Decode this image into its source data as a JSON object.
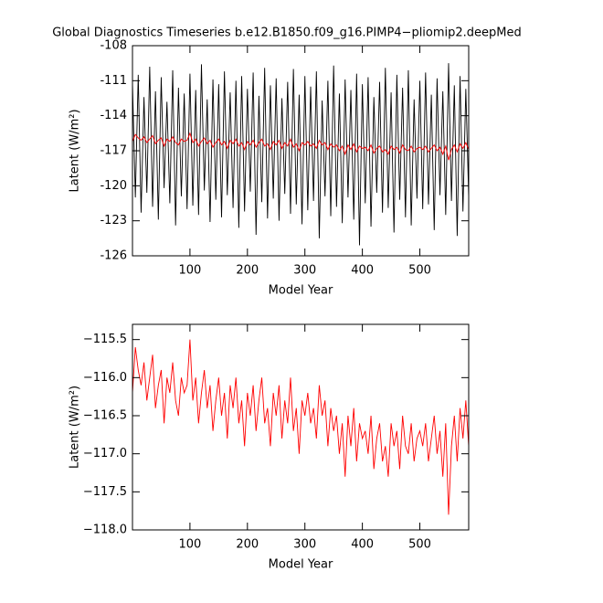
{
  "chart_data": [
    {
      "type": "line",
      "title": "Global Diagnostics Timeseries b.e12.B1850.f09_g16.PIMP4−pliomip2.deepMed",
      "xlabel": "Model Year",
      "ylabel": "Latent (W/m²)",
      "xlim": [
        0,
        585
      ],
      "xticks": [
        100,
        200,
        300,
        400,
        500
      ],
      "ylim": [
        -126,
        -108
      ],
      "yticks": [
        -126,
        -123,
        -120,
        -117,
        -114,
        -111,
        -108
      ],
      "x": [
        0,
        5,
        10,
        15,
        20,
        25,
        30,
        35,
        40,
        45,
        50,
        55,
        60,
        65,
        70,
        75,
        80,
        85,
        90,
        95,
        100,
        105,
        110,
        115,
        120,
        125,
        130,
        135,
        140,
        145,
        150,
        155,
        160,
        165,
        170,
        175,
        180,
        185,
        190,
        195,
        200,
        205,
        210,
        215,
        220,
        225,
        230,
        235,
        240,
        245,
        250,
        255,
        260,
        265,
        270,
        275,
        280,
        285,
        290,
        295,
        300,
        305,
        310,
        315,
        320,
        325,
        330,
        335,
        340,
        345,
        350,
        355,
        360,
        365,
        370,
        375,
        380,
        385,
        390,
        395,
        400,
        405,
        410,
        415,
        420,
        425,
        430,
        435,
        440,
        445,
        450,
        455,
        460,
        465,
        470,
        475,
        480,
        485,
        490,
        495,
        500,
        505,
        510,
        515,
        520,
        525,
        530,
        535,
        540,
        545,
        550,
        555,
        560,
        565,
        570,
        575,
        580,
        585
      ],
      "series": [
        {
          "color": "#000000",
          "values": [
            -111.2,
            -121.0,
            -110.5,
            -122.3,
            -112.4,
            -120.6,
            -109.8,
            -121.8,
            -111.9,
            -122.9,
            -110.7,
            -120.2,
            -112.8,
            -121.5,
            -110.1,
            -123.4,
            -111.6,
            -120.9,
            -112.1,
            -122.0,
            -110.4,
            -121.7,
            -111.8,
            -122.5,
            -109.6,
            -120.4,
            -112.6,
            -123.1,
            -110.9,
            -121.2,
            -111.3,
            -122.7,
            -110.2,
            -120.8,
            -112.0,
            -121.9,
            -111.0,
            -123.6,
            -110.6,
            -122.2,
            -111.7,
            -120.5,
            -110.3,
            -124.2,
            -112.3,
            -121.4,
            -109.9,
            -122.8,
            -111.4,
            -121.1,
            -110.8,
            -123.0,
            -112.5,
            -120.7,
            -111.1,
            -122.4,
            -110.0,
            -121.6,
            -112.2,
            -123.3,
            -110.6,
            -122.1,
            -111.5,
            -121.3,
            -110.2,
            -124.5,
            -112.7,
            -120.9,
            -111.0,
            -122.6,
            -109.7,
            -121.8,
            -112.1,
            -123.2,
            -110.9,
            -121.0,
            -111.8,
            -122.9,
            -110.4,
            -125.1,
            -111.3,
            -121.5,
            -110.7,
            -123.5,
            -112.4,
            -120.6,
            -111.1,
            -122.3,
            -109.9,
            -121.9,
            -112.0,
            -124.0,
            -110.5,
            -121.2,
            -111.6,
            -122.7,
            -110.1,
            -123.4,
            -112.6,
            -121.1,
            -111.0,
            -122.0,
            -110.3,
            -121.6,
            -112.2,
            -123.8,
            -110.8,
            -120.8,
            -111.9,
            -122.5,
            -109.5,
            -121.3,
            -111.4,
            -124.3,
            -110.6,
            -122.2,
            -111.7,
            -121.0
          ]
        },
        {
          "color": "#ff0000",
          "values": [
            -116.2,
            -115.6,
            -115.9,
            -116.1,
            -115.8,
            -116.3,
            -116.0,
            -115.7,
            -116.4,
            -116.1,
            -115.9,
            -116.6,
            -116.0,
            -116.2,
            -115.8,
            -116.3,
            -116.5,
            -116.0,
            -116.2,
            -116.1,
            -115.5,
            -116.3,
            -116.0,
            -116.6,
            -116.2,
            -115.9,
            -116.4,
            -116.1,
            -116.7,
            -116.3,
            -116.0,
            -116.5,
            -116.2,
            -116.8,
            -116.1,
            -116.4,
            -116.0,
            -116.6,
            -116.3,
            -116.9,
            -116.2,
            -116.5,
            -116.1,
            -116.7,
            -116.3,
            -116.0,
            -116.6,
            -116.4,
            -116.9,
            -116.2,
            -116.5,
            -116.1,
            -116.8,
            -116.3,
            -116.6,
            -116.0,
            -116.7,
            -116.4,
            -117.0,
            -116.3,
            -116.5,
            -116.2,
            -116.6,
            -116.4,
            -116.8,
            -116.1,
            -116.5,
            -116.3,
            -116.9,
            -116.4,
            -116.7,
            -116.5,
            -117.0,
            -116.6,
            -117.3,
            -116.5,
            -116.9,
            -116.4,
            -117.1,
            -116.6,
            -116.8,
            -116.7,
            -117.0,
            -116.5,
            -117.2,
            -116.8,
            -116.6,
            -117.1,
            -116.9,
            -117.3,
            -116.6,
            -116.9,
            -116.7,
            -117.2,
            -116.5,
            -116.9,
            -117.0,
            -116.6,
            -117.1,
            -116.8,
            -116.7,
            -116.9,
            -116.6,
            -117.1,
            -116.8,
            -116.5,
            -117.0,
            -116.7,
            -117.3,
            -116.6,
            -117.8,
            -116.9,
            -116.5,
            -117.1,
            -116.4,
            -116.8,
            -116.3,
            -116.9
          ]
        }
      ]
    },
    {
      "type": "line",
      "xlabel": "Model Year",
      "ylabel": "Latent (W/m²)",
      "xlim": [
        0,
        585
      ],
      "xticks": [
        100,
        200,
        300,
        400,
        500
      ],
      "ylim": [
        -118,
        -115.3
      ],
      "yticks": [
        {
          "value": -118,
          "label": "−118.0"
        },
        {
          "value": -117.5,
          "label": "−117.5"
        },
        {
          "value": -117,
          "label": "−117.0"
        },
        {
          "value": -116.5,
          "label": "−116.5"
        },
        {
          "value": -116,
          "label": "−116.0"
        },
        {
          "value": -115.5,
          "label": "−115.5"
        }
      ],
      "x": [
        0,
        5,
        10,
        15,
        20,
        25,
        30,
        35,
        40,
        45,
        50,
        55,
        60,
        65,
        70,
        75,
        80,
        85,
        90,
        95,
        100,
        105,
        110,
        115,
        120,
        125,
        130,
        135,
        140,
        145,
        150,
        155,
        160,
        165,
        170,
        175,
        180,
        185,
        190,
        195,
        200,
        205,
        210,
        215,
        220,
        225,
        230,
        235,
        240,
        245,
        250,
        255,
        260,
        265,
        270,
        275,
        280,
        285,
        290,
        295,
        300,
        305,
        310,
        315,
        320,
        325,
        330,
        335,
        340,
        345,
        350,
        355,
        360,
        365,
        370,
        375,
        380,
        385,
        390,
        395,
        400,
        405,
        410,
        415,
        420,
        425,
        430,
        435,
        440,
        445,
        450,
        455,
        460,
        465,
        470,
        475,
        480,
        485,
        490,
        495,
        500,
        505,
        510,
        515,
        520,
        525,
        530,
        535,
        540,
        545,
        550,
        555,
        560,
        565,
        570,
        575,
        580,
        585
      ],
      "series": [
        {
          "color": "#ff0000",
          "values": [
            -116.2,
            -115.6,
            -115.9,
            -116.1,
            -115.8,
            -116.3,
            -116.0,
            -115.7,
            -116.4,
            -116.1,
            -115.9,
            -116.6,
            -116.0,
            -116.2,
            -115.8,
            -116.3,
            -116.5,
            -116.0,
            -116.2,
            -116.1,
            -115.5,
            -116.3,
            -116.0,
            -116.6,
            -116.2,
            -115.9,
            -116.4,
            -116.1,
            -116.7,
            -116.3,
            -116.0,
            -116.5,
            -116.2,
            -116.8,
            -116.1,
            -116.4,
            -116.0,
            -116.6,
            -116.3,
            -116.9,
            -116.2,
            -116.5,
            -116.1,
            -116.7,
            -116.3,
            -116.0,
            -116.6,
            -116.4,
            -116.9,
            -116.2,
            -116.5,
            -116.1,
            -116.8,
            -116.3,
            -116.6,
            -116.0,
            -116.7,
            -116.4,
            -117.0,
            -116.3,
            -116.5,
            -116.2,
            -116.6,
            -116.4,
            -116.8,
            -116.1,
            -116.5,
            -116.3,
            -116.9,
            -116.4,
            -116.7,
            -116.5,
            -117.0,
            -116.6,
            -117.3,
            -116.5,
            -116.9,
            -116.4,
            -117.1,
            -116.6,
            -116.8,
            -116.7,
            -117.0,
            -116.5,
            -117.2,
            -116.8,
            -116.6,
            -117.1,
            -116.9,
            -117.3,
            -116.6,
            -116.9,
            -116.7,
            -117.2,
            -116.5,
            -116.9,
            -117.0,
            -116.6,
            -117.1,
            -116.8,
            -116.7,
            -116.9,
            -116.6,
            -117.1,
            -116.8,
            -116.5,
            -117.0,
            -116.7,
            -117.3,
            -116.6,
            -117.8,
            -116.9,
            -116.5,
            -117.1,
            -116.4,
            -116.8,
            -116.3,
            -116.9
          ]
        }
      ]
    }
  ]
}
